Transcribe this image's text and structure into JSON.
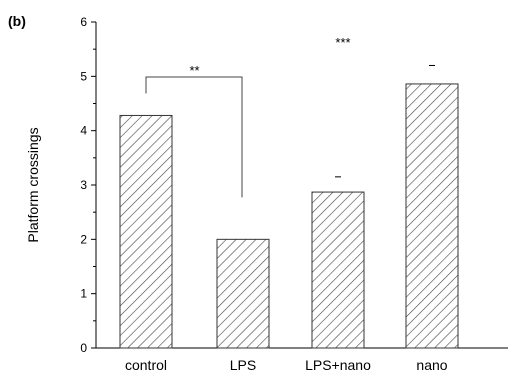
{
  "panel_label": "(b)",
  "chart_data": {
    "type": "bar",
    "categories": [
      "control",
      "LPS",
      "LPS+nano",
      "nano"
    ],
    "values": [
      4.28,
      2.0,
      2.87,
      4.86
    ],
    "error_caps": [
      null,
      null,
      3.15,
      5.2
    ],
    "xlabel": "",
    "ylabel": "Platform crossings",
    "ylim": [
      0,
      6
    ],
    "yticks": [
      "0",
      "1",
      "2",
      "3",
      "4",
      "5",
      "6"
    ],
    "grid": false,
    "bar_pattern": "diagonal-hatch",
    "annotations": {
      "bracket_label": "**",
      "bracket_from": "control",
      "bracket_to": "LPS",
      "top_label": "***"
    }
  }
}
